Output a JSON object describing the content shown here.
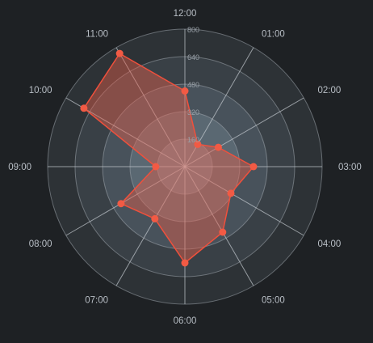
{
  "chart_data": {
    "type": "radar",
    "title": "",
    "categories": [
      "12:00",
      "01:00",
      "02:00",
      "03:00",
      "04:00",
      "05:00",
      "06:00",
      "07:00",
      "08:00",
      "09:00",
      "10:00",
      "11:00"
    ],
    "series": [
      {
        "values": [
          440,
          150,
          225,
          400,
          310,
          440,
          560,
          350,
          430,
          170,
          680,
          760
        ]
      }
    ],
    "radial_ticks": [
      160,
      320,
      480,
      640,
      800
    ],
    "rmax": 800,
    "grid": true,
    "legend": "none",
    "colors": {
      "background": "#1e2124",
      "line": "#f0503c",
      "fill": "#e4604c",
      "point": "#f25a44",
      "axis": "#9fa6ad",
      "label": "#b8bec5",
      "tick": "#9aa1a8"
    }
  }
}
